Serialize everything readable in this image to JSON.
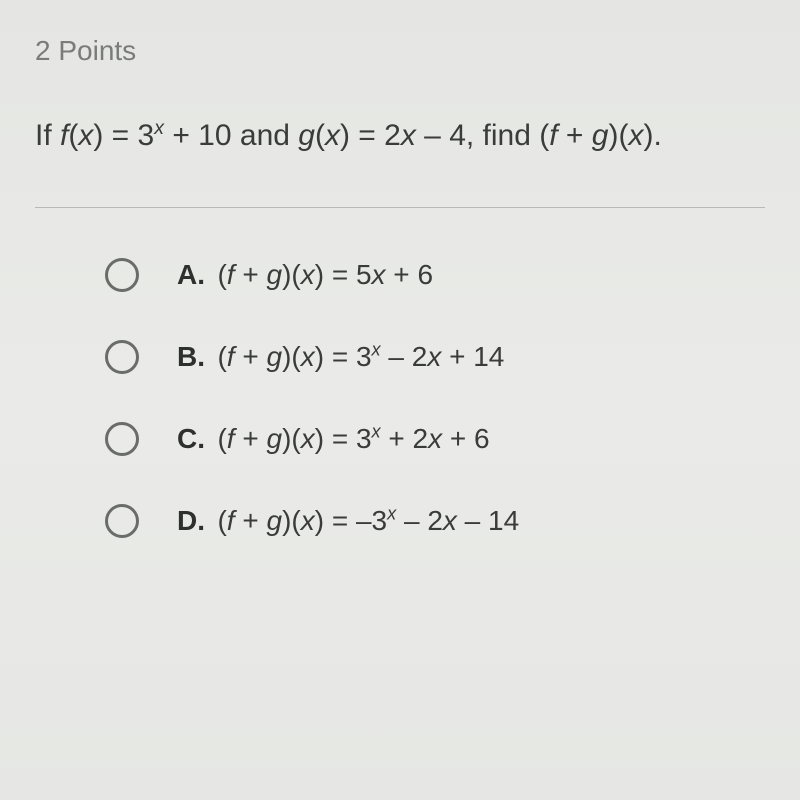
{
  "points_label": "2 Points",
  "question_prefix": "If ",
  "fx_label": "f",
  "fx_arg_open": "(",
  "fx_var": "x",
  "fx_arg_close": ") = 3",
  "fx_exp": "x",
  "fx_rest": " + 10 and ",
  "gx_label": "g",
  "gx_arg_open": "(",
  "gx_var": "x",
  "gx_arg_close": ") = 2",
  "gx_var2": "x",
  "gx_rest": " – 4, find (",
  "find_f": "f",
  "find_plus": " + ",
  "find_g": "g",
  "find_close": ")(",
  "find_x": "x",
  "find_end": ").",
  "choices": [
    {
      "letter": "A.",
      "prefix": "(",
      "f": "f",
      "plus": " + ",
      "g": "g",
      "mid": ")(",
      "x": "x",
      "close": ") = 5",
      "after1": "x",
      "tail": " + 6",
      "has_exp": false
    },
    {
      "letter": "B.",
      "prefix": "(",
      "f": "f",
      "plus": " + ",
      "g": "g",
      "mid": ")(",
      "x": "x",
      "close": ") = 3",
      "exp": "x",
      "after_exp": " – 2",
      "after1": "x",
      "tail": " + 14",
      "has_exp": true
    },
    {
      "letter": "C.",
      "prefix": "(",
      "f": "f",
      "plus": " + ",
      "g": "g",
      "mid": ")(",
      "x": "x",
      "close": ") = 3",
      "exp": "x",
      "after_exp": " + 2",
      "after1": "x",
      "tail": " + 6",
      "has_exp": true
    },
    {
      "letter": "D.",
      "prefix": "(",
      "f": "f",
      "plus": " + ",
      "g": "g",
      "mid": ")(",
      "x": "x",
      "close": ") = –3",
      "exp": "x",
      "after_exp": " – 2",
      "after1": "x",
      "tail": " – 14",
      "has_exp": true
    }
  ],
  "colors": {
    "background": "#e8e9e6",
    "text_muted": "#7a7c79",
    "text_main": "#3a3c3a",
    "text_bold": "#2e302e",
    "radio_border": "#6a6c69",
    "divider": "#b8bab6"
  },
  "typography": {
    "points_fontsize": 28,
    "question_fontsize": 30,
    "choice_fontsize": 28,
    "font_family": "Arial"
  },
  "layout": {
    "radio_diameter": 34,
    "radio_border_width": 3,
    "choice_gap": 48,
    "choices_indent": 70
  }
}
